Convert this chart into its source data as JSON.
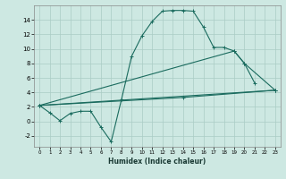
{
  "xlabel": "Humidex (Indice chaleur)",
  "background_color": "#cde8e2",
  "grid_color": "#aaccc5",
  "line_color": "#1a6b5e",
  "xlim": [
    -0.5,
    23.5
  ],
  "ylim": [
    -3.5,
    16.0
  ],
  "xticks": [
    0,
    1,
    2,
    3,
    4,
    5,
    6,
    7,
    8,
    9,
    10,
    11,
    12,
    13,
    14,
    15,
    16,
    17,
    18,
    19,
    20,
    21,
    22,
    23
  ],
  "yticks": [
    -2,
    0,
    2,
    4,
    6,
    8,
    10,
    12,
    14
  ],
  "line1_x": [
    0,
    1,
    2,
    3,
    4,
    5,
    6,
    7,
    8,
    9,
    10,
    11,
    12,
    13,
    14,
    15,
    16,
    17,
    18,
    19,
    20,
    21
  ],
  "line1_y": [
    2.2,
    1.2,
    0.1,
    1.1,
    1.4,
    1.4,
    -0.8,
    -2.8,
    3.0,
    9.0,
    11.8,
    13.8,
    15.2,
    15.3,
    15.3,
    15.2,
    13.0,
    10.2,
    10.2,
    9.7,
    8.0,
    5.3
  ],
  "line2_x": [
    0,
    19,
    20,
    23
  ],
  "line2_y": [
    2.2,
    9.7,
    8.0,
    4.3
  ],
  "line3_x": [
    0,
    23
  ],
  "line3_y": [
    2.2,
    4.3
  ],
  "line4_x": [
    0,
    14,
    23
  ],
  "line4_y": [
    2.2,
    3.3,
    4.3
  ]
}
